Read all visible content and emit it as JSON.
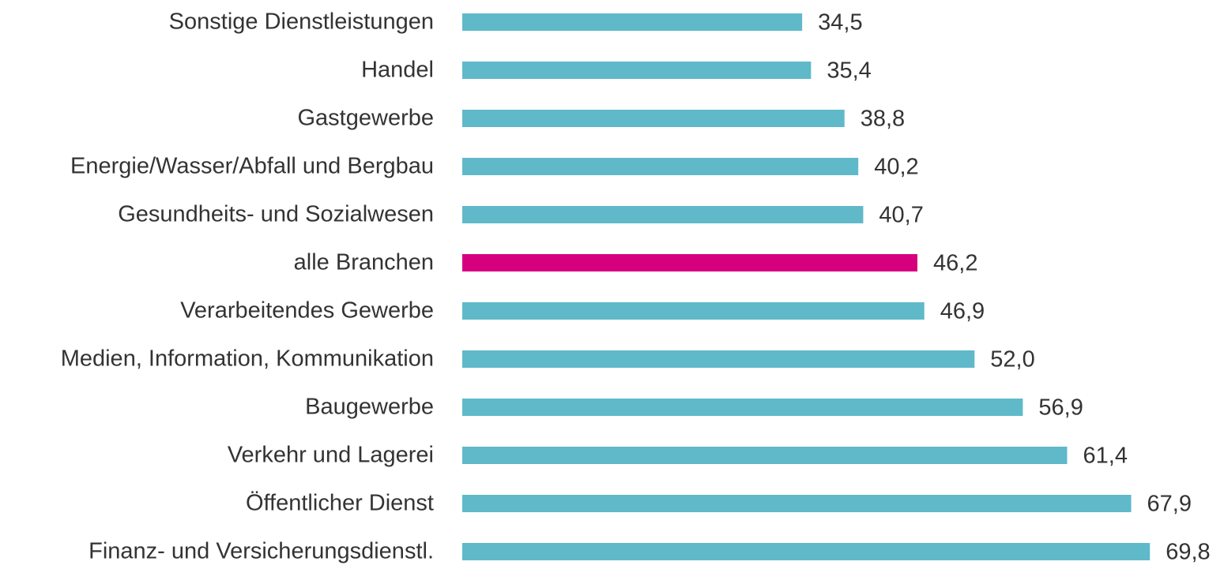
{
  "chart_data": {
    "type": "barh",
    "categories": [
      "Sonstige Dienstleistungen",
      "Handel",
      "Gastgewerbe",
      "Energie/Wasser/Abfall und Bergbau",
      "Gesundheits- und Sozialwesen",
      "alle Branchen",
      "Verarbeitendes Gewerbe",
      "Medien, Information, Kommunikation",
      "Baugewerbe",
      "Verkehr und Lagerei",
      "Öffentlicher Dienst",
      "Finanz- und Versicherungsdienstl."
    ],
    "values": [
      34.5,
      35.4,
      38.8,
      40.2,
      40.7,
      46.2,
      46.9,
      52.0,
      56.9,
      61.4,
      67.9,
      69.8
    ],
    "value_labels": [
      "34,5",
      "35,4",
      "38,8",
      "40,2",
      "40,7",
      "46,2",
      "46,9",
      "52,0",
      "56,9",
      "61,4",
      "67,9",
      "69,8"
    ],
    "colors": [
      "#5fb9c9",
      "#5fb9c9",
      "#5fb9c9",
      "#5fb9c9",
      "#5fb9c9",
      "#d6007e",
      "#5fb9c9",
      "#5fb9c9",
      "#5fb9c9",
      "#5fb9c9",
      "#5fb9c9",
      "#5fb9c9"
    ],
    "xlim": [
      0,
      77
    ]
  }
}
